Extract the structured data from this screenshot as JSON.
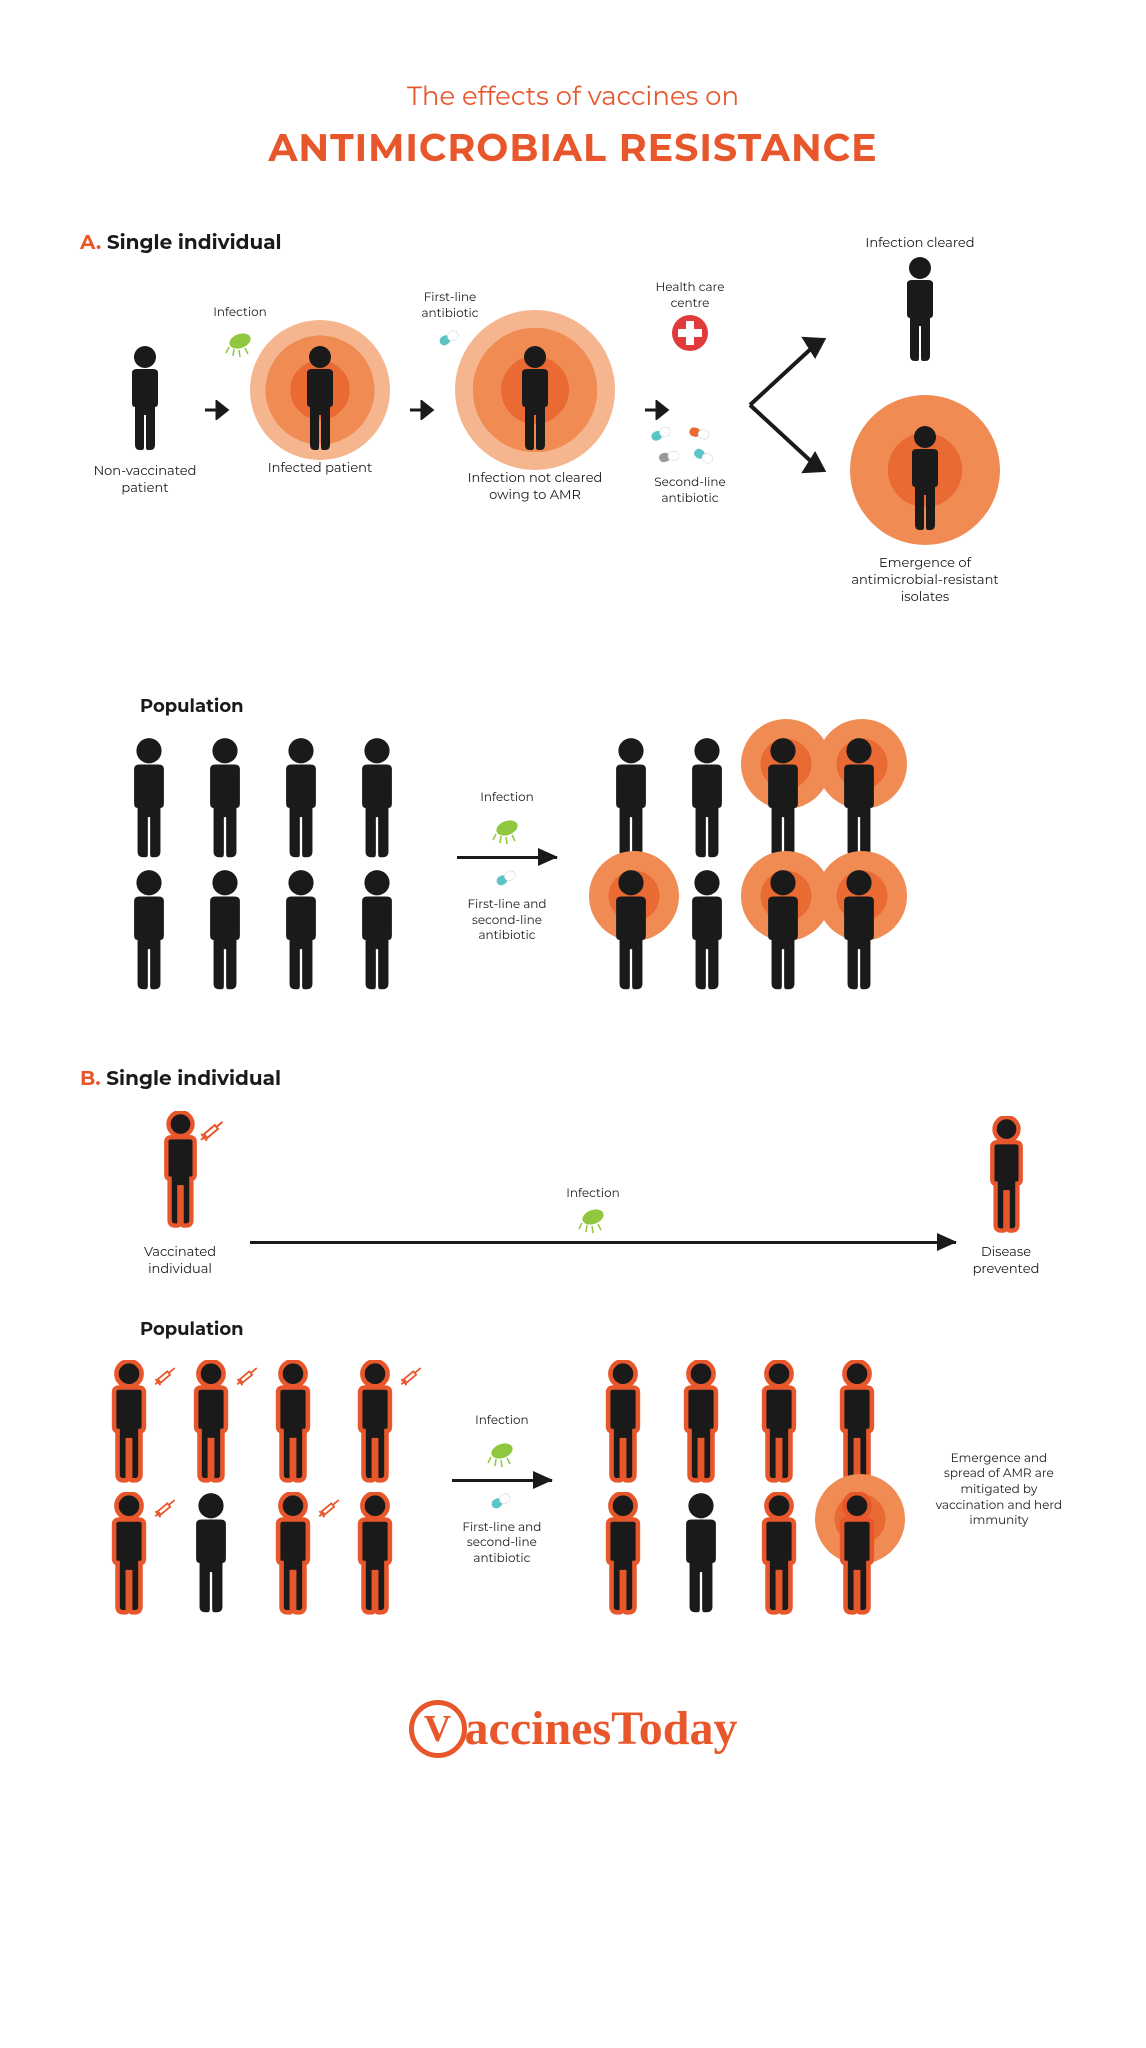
{
  "header": {
    "title_small": "The effects of vaccines on",
    "title_big": "ANTIMICROBIAL RESISTANCE"
  },
  "colors": {
    "accent": "#e8572c",
    "halo_outer": "#f5b58f",
    "halo_mid": "#f08b54",
    "halo_inner": "#ea6a34",
    "person_black": "#1a1a1a",
    "person_orange_fill": "#1a1a1a",
    "person_orange_stroke": "#e8572c",
    "bacteria": "#8fc73e",
    "pill_teal": "#5bc4c4",
    "pill_white": "#ffffff",
    "pill_orange": "#ea6a34",
    "medical_cross_bg": "#e03a3a",
    "syringe": "#e8572c"
  },
  "sectionA": {
    "letter": "A.",
    "single_label": "Single individual",
    "population_label": "Population",
    "steps": {
      "non_vaccinated": "Non-vaccinated patient",
      "infection": "Infection",
      "infected": "Infected patient",
      "first_line": "First-line antibiotic",
      "not_cleared": "Infection not cleared owing to AMR",
      "health_centre": "Health care centre",
      "second_line": "Second-line antibiotic",
      "cleared": "Infection cleared",
      "emergence": "Emergence of antimicrobial-resistant isolates"
    },
    "pop_arrow_top": "Infection",
    "pop_arrow_bottom": "First-line and second-line antibiotic"
  },
  "sectionB": {
    "letter": "B.",
    "single_label": "Single individual",
    "population_label": "Population",
    "vaccinated": "Vaccinated individual",
    "infection": "Infection",
    "prevented": "Disease prevented",
    "pop_arrow_top": "Infection",
    "pop_arrow_bottom": "First-line and second-line antibiotic",
    "pop_result": "Emergence and spread of AMR are mitigated by vaccination and herd immunity"
  },
  "logo": {
    "v": "V",
    "rest": "accinesToday"
  },
  "infographic": {
    "type": "infographic",
    "person_sizes": {
      "small_w": 40,
      "small_h": 90,
      "med_w": 50,
      "med_h": 110,
      "pop_w": 52,
      "pop_h": 115
    },
    "halo_radii": {
      "outer": 90,
      "mid": 70,
      "inner": 50
    },
    "sectionA_population": {
      "left_grid": {
        "rows": 2,
        "cols": 4,
        "infected": []
      },
      "right_grid": {
        "rows": 2,
        "cols": 4,
        "infected": [
          2,
          3,
          4,
          6,
          7
        ]
      }
    },
    "sectionB_population": {
      "left_grid": {
        "rows": 2,
        "cols": 4,
        "vaccinated": [
          0,
          1,
          2,
          3,
          4,
          6,
          7
        ],
        "syringes": [
          0,
          1,
          3,
          4,
          6
        ]
      },
      "right_grid": {
        "rows": 2,
        "cols": 4,
        "vaccinated": [
          0,
          1,
          2,
          3,
          4,
          6,
          7
        ],
        "infected": [
          7
        ]
      }
    }
  }
}
